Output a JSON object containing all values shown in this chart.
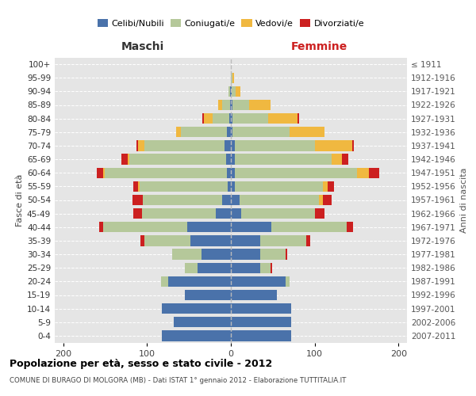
{
  "age_groups": [
    "0-4",
    "5-9",
    "10-14",
    "15-19",
    "20-24",
    "25-29",
    "30-34",
    "35-39",
    "40-44",
    "45-49",
    "50-54",
    "55-59",
    "60-64",
    "65-69",
    "70-74",
    "75-79",
    "80-84",
    "85-89",
    "90-94",
    "95-99",
    "100+"
  ],
  "birth_years": [
    "2007-2011",
    "2002-2006",
    "1997-2001",
    "1992-1996",
    "1987-1991",
    "1982-1986",
    "1977-1981",
    "1972-1976",
    "1967-1971",
    "1962-1966",
    "1957-1961",
    "1952-1956",
    "1947-1951",
    "1942-1946",
    "1937-1941",
    "1932-1936",
    "1927-1931",
    "1922-1926",
    "1917-1921",
    "1912-1916",
    "≤ 1911"
  ],
  "maschi_celibi": [
    82,
    68,
    82,
    55,
    75,
    40,
    35,
    48,
    52,
    18,
    10,
    4,
    5,
    6,
    8,
    5,
    2,
    1,
    1,
    0,
    0
  ],
  "maschi_coniugati": [
    0,
    0,
    0,
    0,
    8,
    15,
    35,
    55,
    100,
    88,
    95,
    105,
    145,
    115,
    95,
    55,
    20,
    9,
    2,
    0,
    0
  ],
  "maschi_vedovi": [
    0,
    0,
    0,
    0,
    0,
    0,
    0,
    0,
    0,
    0,
    0,
    2,
    2,
    2,
    8,
    5,
    10,
    5,
    0,
    0,
    0
  ],
  "maschi_divorziati": [
    0,
    0,
    0,
    0,
    0,
    0,
    0,
    5,
    5,
    10,
    12,
    5,
    8,
    8,
    2,
    0,
    2,
    0,
    0,
    0,
    0
  ],
  "femmine_nubili": [
    72,
    72,
    72,
    55,
    65,
    35,
    35,
    35,
    48,
    12,
    10,
    5,
    5,
    5,
    5,
    2,
    2,
    2,
    1,
    0,
    0
  ],
  "femmine_coniugate": [
    0,
    0,
    0,
    0,
    5,
    12,
    30,
    55,
    90,
    88,
    95,
    105,
    145,
    115,
    95,
    68,
    42,
    20,
    5,
    2,
    0
  ],
  "femmine_vedove": [
    0,
    0,
    0,
    0,
    0,
    0,
    0,
    0,
    0,
    0,
    5,
    5,
    15,
    12,
    45,
    42,
    35,
    25,
    5,
    2,
    0
  ],
  "femmine_divorziate": [
    0,
    0,
    0,
    0,
    0,
    2,
    2,
    5,
    8,
    12,
    10,
    8,
    12,
    8,
    2,
    0,
    2,
    0,
    0,
    0,
    0
  ],
  "color_celibi": "#4a72aa",
  "color_coniugati": "#b5c89a",
  "color_vedovi": "#f0b840",
  "color_divorziati": "#cc2020",
  "bg_color": "#e5e5e5",
  "title": "Popolazione per età, sesso e stato civile - 2012",
  "subtitle": "COMUNE DI BURAGO DI MOLGORA (MB) - Dati ISTAT 1° gennaio 2012 - Elaborazione TUTTITALIA.IT",
  "xlim": 210,
  "maschi_label": "Maschi",
  "femmine_label": "Femmine",
  "ylabel_left": "Fasce di età",
  "ylabel_right": "Anni di nascita",
  "legend_labels": [
    "Celibi/Nubili",
    "Coniugati/e",
    "Vedovi/e",
    "Divorziati/e"
  ]
}
